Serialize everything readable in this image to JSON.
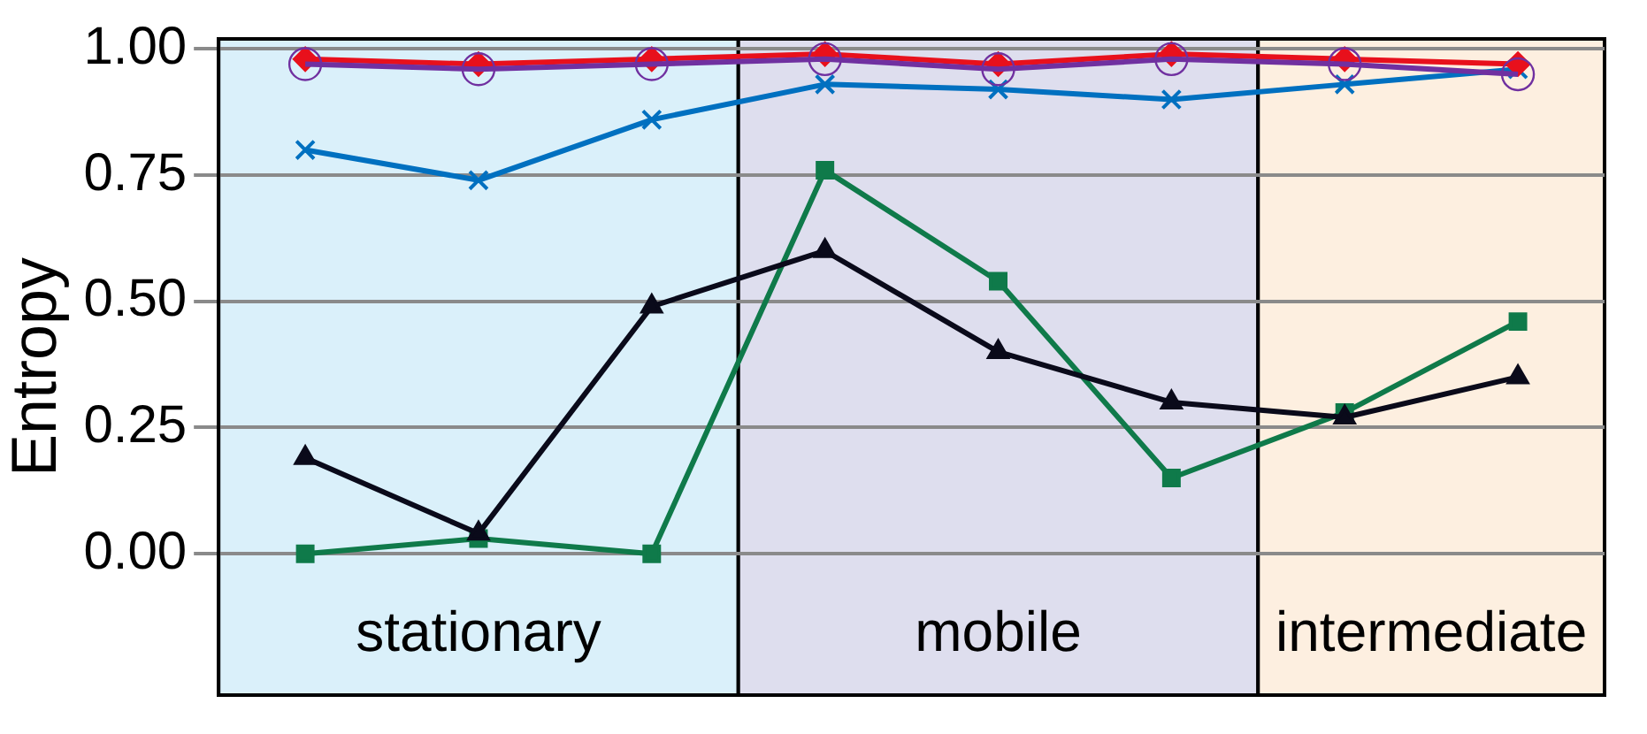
{
  "chart_data": {
    "type": "line",
    "ylabel": "Entropy",
    "categories": [
      null,
      null,
      null,
      null,
      null,
      null,
      null,
      null
    ],
    "series": [
      {
        "color": "#7030a0",
        "marker": "circle",
        "values": [
          0.97,
          0.96,
          0.97,
          0.98,
          0.96,
          0.98,
          0.97,
          0.95
        ]
      },
      {
        "color": "#e8101c",
        "marker": "diamond",
        "values": [
          0.98,
          0.97,
          0.98,
          0.99,
          0.97,
          0.99,
          0.98,
          0.97
        ]
      },
      {
        "color": "#0070c0",
        "marker": "cross",
        "values": [
          0.8,
          0.74,
          0.86,
          0.93,
          0.92,
          0.9,
          0.93,
          0.96
        ]
      },
      {
        "color": "#0a0a1a",
        "marker": "triangle",
        "values": [
          0.19,
          0.04,
          0.49,
          0.6,
          0.4,
          0.3,
          0.27,
          0.35
        ]
      },
      {
        "color": "#0f7a4a",
        "marker": "square",
        "values": [
          0.0,
          0.03,
          0.0,
          0.76,
          0.54,
          0.15,
          0.28,
          0.46
        ]
      }
    ],
    "ylim": [
      -0.28,
      1.02
    ],
    "yticks": [
      {
        "value": 0,
        "label": "0.00"
      },
      {
        "value": 0.25,
        "label": "0.25"
      },
      {
        "value": 0.5,
        "label": "0.50"
      },
      {
        "value": 0.75,
        "label": "0.75"
      },
      {
        "value": 1,
        "label": "1.00"
      }
    ],
    "grid": "y",
    "legend": false,
    "tick_labels": "y",
    "annotations": [
      "stationary",
      "mobile",
      "intermediate"
    ]
  }
}
